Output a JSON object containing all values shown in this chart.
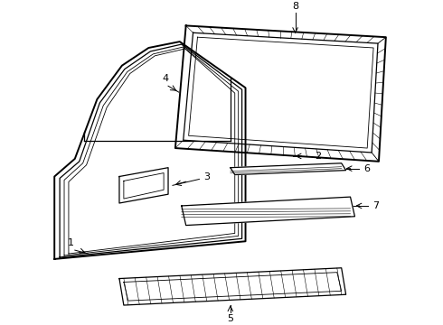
{
  "background_color": "#ffffff",
  "line_color": "#000000",
  "label_fontsize": 8,
  "figsize": [
    4.9,
    3.6
  ],
  "dpi": 100,
  "lw_main": 1.4,
  "lw_med": 0.9,
  "lw_thin": 0.6,
  "lw_hair": 0.4
}
